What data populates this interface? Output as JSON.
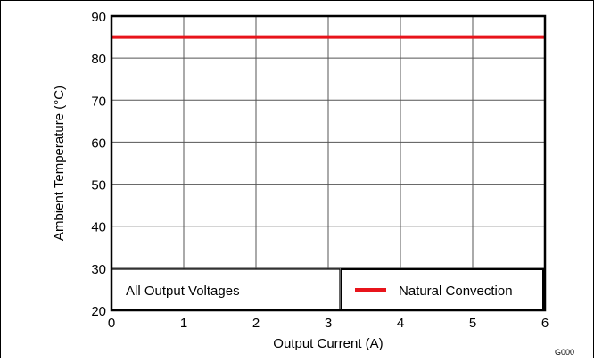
{
  "chart_data": {
    "type": "line",
    "title": "",
    "xlabel": "Output Current (A)",
    "ylabel": "Ambient Temperature (°C)",
    "xlim": [
      0,
      6
    ],
    "ylim": [
      20,
      90
    ],
    "x_ticks": [
      0,
      1,
      2,
      3,
      4,
      5,
      6
    ],
    "y_ticks": [
      20,
      30,
      40,
      50,
      60,
      70,
      80,
      90
    ],
    "grid": true,
    "legend_position": "bottom-right",
    "series": [
      {
        "name": "Natural Convection",
        "color": "#e8141b",
        "x": [
          0,
          6
        ],
        "y": [
          85,
          85
        ]
      }
    ],
    "annotations": [
      {
        "text": "All Output Voltages",
        "position": "bottom-left"
      }
    ],
    "figure_code": "G000"
  }
}
